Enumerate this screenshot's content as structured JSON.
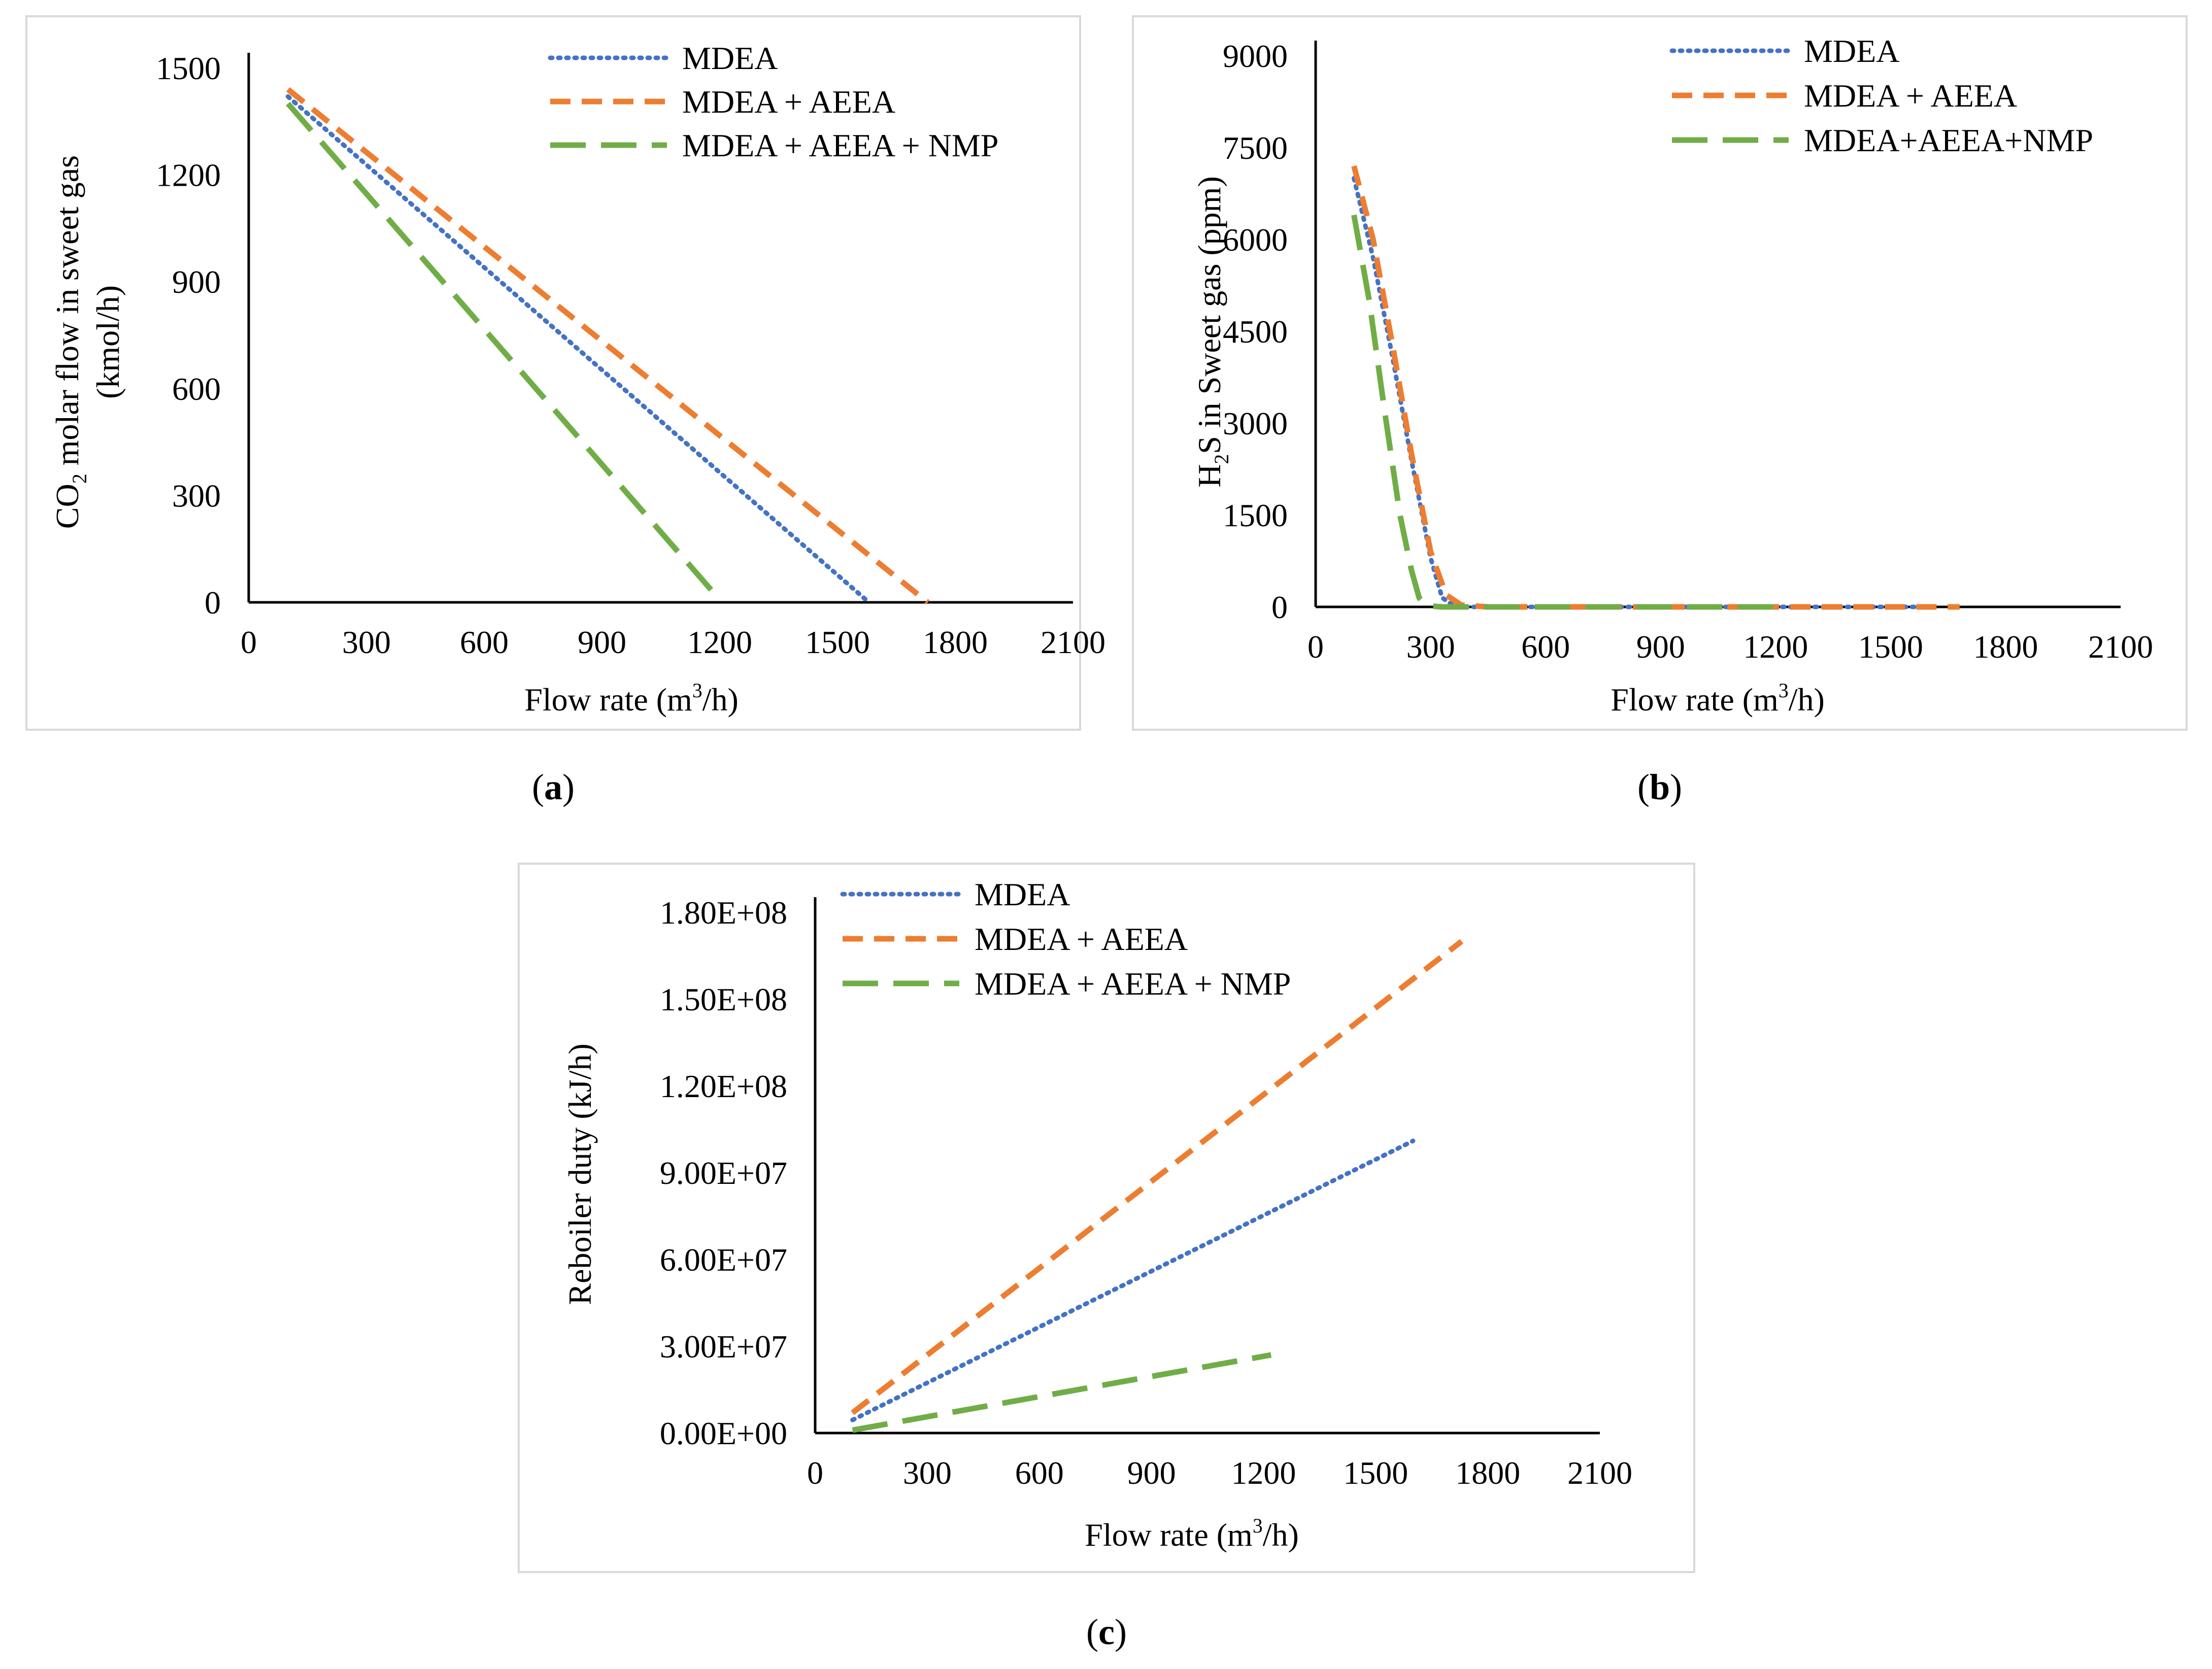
{
  "colors": {
    "MDEA": "#4472c4",
    "MDEA_AEEA": "#ed7d31",
    "MDEA_AEEA_NMP": "#70ad47",
    "axis": "#000000",
    "frame": "#d9d9d9"
  },
  "captions": {
    "a": "a",
    "b": "b",
    "c": "c"
  },
  "chart_data": [
    {
      "id": "a",
      "type": "line",
      "title": "",
      "xlabel": "Flow rate (m",
      "xlabel_sup": "3",
      "xlabel_tail": "/h)",
      "ylabel_line1_pre": "CO",
      "ylabel_line1_sub": "2",
      "ylabel_line1_post": " molar flow in sweet gas",
      "ylabel_line2": "(kmol/h)",
      "xlim": [
        0,
        2100
      ],
      "ylim": [
        0,
        1500
      ],
      "xticks": [
        "0",
        "300",
        "600",
        "900",
        "1200",
        "1500",
        "1800",
        "2100"
      ],
      "yticks": [
        "0",
        "300",
        "600",
        "900",
        "1200",
        "1500"
      ],
      "legend_position": "top-right",
      "series": [
        {
          "name": "MDEA",
          "style": "dotted",
          "x": [
            100,
            1580
          ],
          "y": [
            1420,
            0
          ]
        },
        {
          "name": "MDEA + AEEA",
          "style": "dashed",
          "x": [
            100,
            1730
          ],
          "y": [
            1440,
            0
          ]
        },
        {
          "name": "MDEA + AEEA + NMP",
          "style": "longdash",
          "x": [
            100,
            1190
          ],
          "y": [
            1400,
            20
          ]
        }
      ]
    },
    {
      "id": "b",
      "type": "line",
      "title": "",
      "xlabel": "Flow rate (m",
      "xlabel_sup": "3",
      "xlabel_tail": "/h)",
      "ylabel_line1_pre": "H",
      "ylabel_line1_sub": "2",
      "ylabel_line1_post": "S in Sweet gas (ppm)",
      "ylabel_line2": "",
      "xlim": [
        0,
        2100
      ],
      "ylim": [
        0,
        9000
      ],
      "xticks": [
        "0",
        "300",
        "600",
        "900",
        "1200",
        "1500",
        "1800",
        "2100"
      ],
      "yticks": [
        "0",
        "1500",
        "3000",
        "4500",
        "6000",
        "7500",
        "9000"
      ],
      "legend_position": "top-right",
      "series": [
        {
          "name": "MDEA",
          "style": "dotted",
          "x": [
            100,
            150,
            200,
            250,
            300,
            330,
            360,
            400,
            600,
            1000,
            1600
          ],
          "y": [
            7000,
            5700,
            4100,
            2400,
            800,
            150,
            20,
            0,
            0,
            0,
            0
          ]
        },
        {
          "name": "MDEA + AEEA",
          "style": "dashed",
          "x": [
            100,
            150,
            200,
            250,
            300,
            340,
            380,
            450,
            800,
            1200,
            1680
          ],
          "y": [
            7200,
            6000,
            4300,
            2500,
            900,
            200,
            30,
            0,
            0,
            0,
            0
          ]
        },
        {
          "name": "MDEA+AEEA+NMP",
          "style": "longdash",
          "x": [
            100,
            140,
            180,
            220,
            250,
            270,
            290,
            330,
            400,
            700,
            1200
          ],
          "y": [
            6400,
            5000,
            3200,
            1500,
            600,
            150,
            20,
            0,
            0,
            0,
            0
          ]
        }
      ]
    },
    {
      "id": "c",
      "type": "line",
      "title": "",
      "xlabel": "Flow rate (m",
      "xlabel_sup": "3",
      "xlabel_tail": "/h)",
      "ylabel_line1_pre": "Reboiler duty (kJ/h)",
      "ylabel_line1_sub": "",
      "ylabel_line1_post": "",
      "ylabel_line2": "",
      "xlim": [
        0,
        2100
      ],
      "ylim": [
        0,
        180000000
      ],
      "xticks": [
        "0",
        "300",
        "600",
        "900",
        "1200",
        "1500",
        "1800",
        "2100"
      ],
      "yticks": [
        "0.00E+00",
        "3.00E+07",
        "6.00E+07",
        "9.00E+07",
        "1.20E+08",
        "1.50E+08",
        "1.80E+08"
      ],
      "legend_position": "top-left",
      "series": [
        {
          "name": "MDEA",
          "style": "dotted",
          "x": [
            100,
            1600
          ],
          "y": [
            4500000,
            101000000
          ]
        },
        {
          "name": "MDEA + AEEA",
          "style": "dashed",
          "x": [
            100,
            1730
          ],
          "y": [
            7000000,
            170000000
          ]
        },
        {
          "name": "MDEA + AEEA + NMP",
          "style": "longdash",
          "x": [
            100,
            1220
          ],
          "y": [
            1000000,
            27000000
          ]
        }
      ]
    }
  ]
}
